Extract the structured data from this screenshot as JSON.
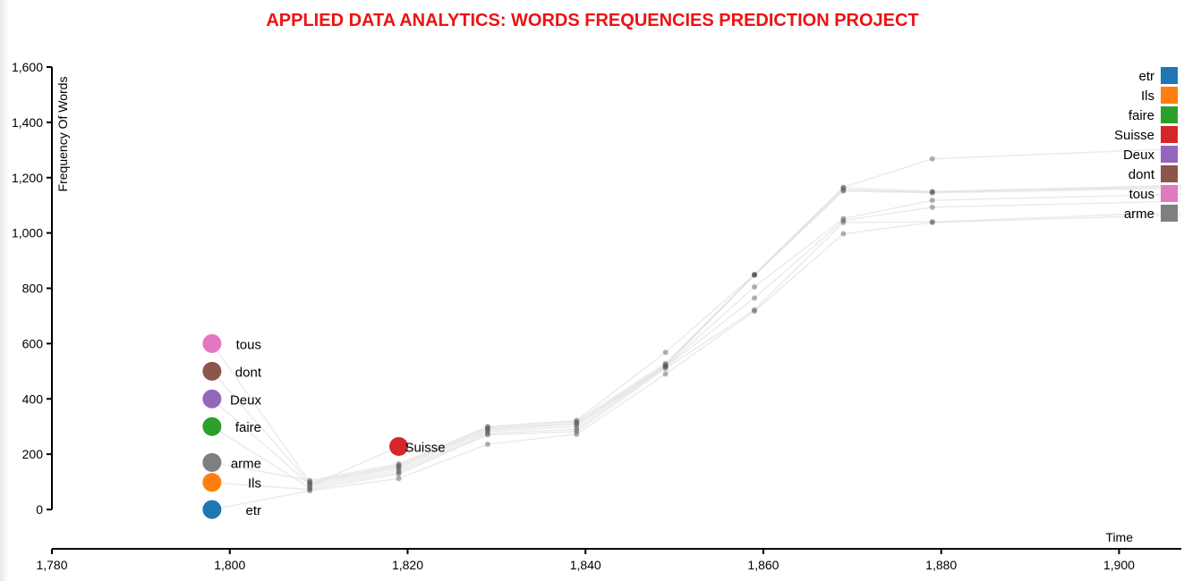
{
  "chart_data": {
    "type": "line",
    "title": "APPLIED DATA ANALYTICS: WORDS FREQUENCIES PREDICTION PROJECT",
    "xlabel": "Time",
    "ylabel": "Frequency Of Words",
    "xlim": [
      1780,
      1907
    ],
    "ylim": [
      0,
      1600
    ],
    "x_ticks": [
      "1,780",
      "1,800",
      "1,820",
      "1,840",
      "1,860",
      "1,880",
      "1,900"
    ],
    "y_ticks": [
      "0",
      "200",
      "400",
      "600",
      "800",
      "1,000",
      "1,200",
      "1,400",
      "1,600"
    ],
    "x": [
      1809,
      1819,
      1829,
      1839,
      1849,
      1859,
      1869,
      1879
    ],
    "series": [
      {
        "name": "etr",
        "color": "#1f77b4",
        "values": [
          68,
          112,
          236,
          272,
          490,
          717,
          997,
          1038
        ],
        "end": 1065
      },
      {
        "name": "Ils",
        "color": "#ff7f0e",
        "values": [
          72,
          128,
          270,
          282,
          510,
          722,
          1038,
          1040
        ],
        "end": 1075
      },
      {
        "name": "faire",
        "color": "#2ca02c",
        "values": [
          78,
          135,
          275,
          290,
          515,
          765,
          1045,
          1093
        ],
        "end": 1115
      },
      {
        "name": "Suisse",
        "color": "#d62728",
        "values": [
          85,
          142,
          282,
          300,
          518,
          805,
          1052,
          1118
        ],
        "end": 1140
      },
      {
        "name": "Deux",
        "color": "#9467bd",
        "values": [
          90,
          150,
          288,
          308,
          520,
          848,
          1152,
          1145
        ],
        "end": 1162
      },
      {
        "name": "dont",
        "color": "#8c564b",
        "values": [
          95,
          155,
          292,
          312,
          523,
          848,
          1155,
          1148
        ],
        "end": 1168
      },
      {
        "name": "tous",
        "color": "#e377c2",
        "values": [
          100,
          160,
          297,
          318,
          528,
          848,
          1163,
          1150
        ],
        "end": 1172
      },
      {
        "name": "arme",
        "color": "#7f7f7f",
        "values": [
          105,
          165,
          300,
          322,
          568,
          850,
          1165,
          1268
        ],
        "end": 1305
      }
    ],
    "legend": [
      "etr",
      "Ils",
      "faire",
      "Suisse",
      "Deux",
      "dont",
      "tous",
      "arme"
    ],
    "legend_position": "top-right",
    "grid": false,
    "bubbles": [
      {
        "word": "tous",
        "color": "#e377c2",
        "x": 1798,
        "y": 600
      },
      {
        "word": "dont",
        "color": "#8c564b",
        "x": 1798,
        "y": 500
      },
      {
        "word": "Deux",
        "color": "#9467bd",
        "x": 1798,
        "y": 400
      },
      {
        "word": "faire",
        "color": "#2ca02c",
        "x": 1798,
        "y": 300
      },
      {
        "word": "arme",
        "color": "#7f7f7f",
        "x": 1798,
        "y": 170
      },
      {
        "word": "Ils",
        "color": "#ff7f0e",
        "x": 1798,
        "y": 98
      },
      {
        "word": "etr",
        "color": "#1f77b4",
        "x": 1798,
        "y": 0
      },
      {
        "word": "Suisse",
        "color": "#d62728",
        "x": 1819,
        "y": 228
      }
    ]
  }
}
